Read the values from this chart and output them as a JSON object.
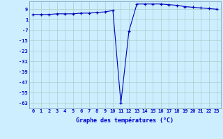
{
  "x": [
    0,
    1,
    2,
    3,
    4,
    5,
    6,
    7,
    8,
    9,
    10,
    11,
    12,
    13,
    14,
    15,
    16,
    17,
    18,
    19,
    20,
    21,
    22,
    23
  ],
  "y": [
    5,
    5,
    5,
    5.5,
    5.5,
    5.5,
    6,
    6,
    6.5,
    7,
    8,
    -63,
    -8,
    13,
    13,
    13,
    13,
    12.5,
    12,
    11,
    10.5,
    10,
    9.5,
    9
  ],
  "xlabel": "Graphe des températures (°C)",
  "line_color": "#0000bb",
  "marker": "+",
  "bg_color": "#cceeff",
  "grid_color": "#aacccc",
  "xlim": [
    -0.5,
    23.5
  ],
  "ylim": [
    -67,
    15
  ],
  "yticks": [
    9,
    1,
    -7,
    -15,
    -23,
    -31,
    -39,
    -47,
    -55,
    -63
  ],
  "xticks": [
    0,
    1,
    2,
    3,
    4,
    5,
    6,
    7,
    8,
    9,
    10,
    11,
    12,
    13,
    14,
    15,
    16,
    17,
    18,
    19,
    20,
    21,
    22,
    23
  ],
  "tick_fontsize": 5.0,
  "xlabel_fontsize": 6.0,
  "figsize": [
    3.2,
    2.0
  ],
  "dpi": 100
}
